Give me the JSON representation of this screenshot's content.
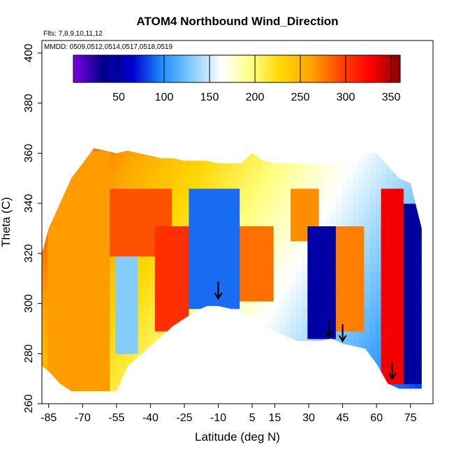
{
  "chart_data": {
    "type": "heatmap",
    "title": "ATOM4 Northbound Wind_Direction",
    "flights_note": "Flts: 7,8,9,10,11,12",
    "dates_note": "MMDD: 0509,0512,0514,0517,0518,0519",
    "xlabel": "Latitude (deg N)",
    "ylabel": "Theta (C)",
    "xlim": [
      -88,
      85
    ],
    "ylim": [
      260,
      405
    ],
    "x_ticks": [
      "-85",
      "-70",
      "-55",
      "-40",
      "-25",
      "-10",
      "5",
      "15",
      "30",
      "45",
      "60",
      "75"
    ],
    "x_tick_values": [
      -85,
      -70,
      -55,
      -40,
      -25,
      -10,
      5,
      15,
      30,
      45,
      60,
      75
    ],
    "y_ticks": [
      "260",
      "280",
      "300",
      "320",
      "340",
      "360",
      "380",
      "400"
    ],
    "y_tick_values": [
      260,
      280,
      300,
      320,
      340,
      360,
      380,
      400
    ],
    "colorbar": {
      "min": 0,
      "max": 360,
      "ticks": [
        "50",
        "100",
        "150",
        "200",
        "250",
        "300",
        "350"
      ],
      "tick_values": [
        50,
        100,
        150,
        200,
        250,
        300,
        350
      ],
      "colors": [
        "#7b00e0",
        "#00008b",
        "#0000d0",
        "#1e90ff",
        "#87cefa",
        "#ffffff",
        "#ffff80",
        "#ffd700",
        "#ffa500",
        "#ff4500",
        "#ff0000",
        "#8b0000"
      ]
    },
    "data_region": {
      "lat": [
        -88,
        -85,
        -80,
        -75,
        -70,
        -65,
        -60,
        -55,
        -50,
        -45,
        -40,
        -35,
        -30,
        -25,
        -20,
        -15,
        -10,
        -5,
        0,
        5,
        10,
        15,
        20,
        25,
        30,
        35,
        40,
        45,
        50,
        55,
        60,
        65,
        70,
        75,
        80
      ],
      "theta_bottom": [
        275,
        273,
        268,
        265,
        265,
        265,
        265,
        265,
        275,
        279,
        283,
        287,
        291,
        294,
        297,
        299,
        299,
        298,
        297,
        294,
        291,
        289,
        287,
        285,
        285,
        285,
        286,
        284,
        283,
        282,
        276,
        268,
        266,
        266,
        266
      ],
      "theta_top": [
        320,
        330,
        340,
        350,
        356,
        362,
        361,
        360,
        361,
        360,
        359,
        358,
        358,
        357,
        357,
        357,
        356,
        356,
        356,
        360,
        357,
        356,
        356,
        356,
        356,
        355,
        355,
        356,
        356,
        360,
        360,
        355,
        350,
        348,
        330
      ]
    },
    "regions": [
      {
        "name": "west-orange",
        "lat": [
          -86,
          -58
        ],
        "theta": [
          265,
          362
        ],
        "value": 265
      },
      {
        "name": "upper-red",
        "lat": [
          -58,
          -30
        ],
        "theta": [
          320,
          345
        ],
        "value": 290
      },
      {
        "name": "mid-blue",
        "lat": [
          -55,
          -45
        ],
        "theta": [
          280,
          320
        ],
        "value": 130
      },
      {
        "name": "red-band",
        "lat": [
          -38,
          -22
        ],
        "theta": [
          290,
          330
        ],
        "value": 305
      },
      {
        "name": "blue-column",
        "lat": [
          -22,
          0
        ],
        "theta": [
          298,
          345
        ],
        "value": 90
      },
      {
        "name": "orange-patch",
        "lat": [
          0,
          15
        ],
        "theta": [
          300,
          330
        ],
        "value": 280
      },
      {
        "name": "orange-top",
        "lat": [
          22,
          35
        ],
        "theta": [
          325,
          345
        ],
        "value": 270
      },
      {
        "name": "deep-blue",
        "lat": [
          30,
          42
        ],
        "theta": [
          285,
          330
        ],
        "value": 45
      },
      {
        "name": "orange-column",
        "lat": [
          42,
          55
        ],
        "theta": [
          290,
          330
        ],
        "value": 275
      },
      {
        "name": "red-east",
        "lat": [
          63,
          72
        ],
        "theta": [
          268,
          345
        ],
        "value": 330
      },
      {
        "name": "east-blue",
        "lat": [
          72,
          82
        ],
        "theta": [
          268,
          340
        ],
        "value": 40
      }
    ],
    "arrows": [
      {
        "lat": -10,
        "theta": 302
      },
      {
        "lat": 39,
        "theta": 287
      },
      {
        "lat": 45,
        "theta": 285
      },
      {
        "lat": 67,
        "theta": 270
      }
    ],
    "grid": false,
    "legend": "top"
  }
}
